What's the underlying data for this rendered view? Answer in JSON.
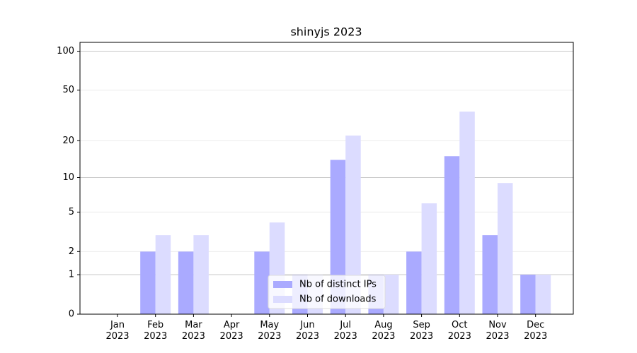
{
  "chart_data": {
    "type": "bar",
    "title": "shinyjs 2023",
    "scale": "log1p",
    "categories": [
      "Jan\n2023",
      "Feb\n2023",
      "Mar\n2023",
      "Apr\n2023",
      "May\n2023",
      "Jun\n2023",
      "Jul\n2023",
      "Aug\n2023",
      "Sep\n2023",
      "Oct\n2023",
      "Nov\n2023",
      "Dec\n2023"
    ],
    "series": [
      {
        "name": "Nb of distinct IPs",
        "color": "#aaaaff",
        "values": [
          0,
          2,
          2,
          0,
          2,
          1,
          14,
          1,
          2,
          15,
          3,
          1
        ]
      },
      {
        "name": "Nb of downloads",
        "color": "#dcdcff",
        "values": [
          0,
          3,
          3,
          0,
          4,
          1,
          22,
          1,
          6,
          34,
          9,
          1
        ]
      }
    ],
    "ylim": [
      0,
      117
    ],
    "yticks": [
      0,
      1,
      2,
      5,
      10,
      20,
      50,
      100
    ],
    "grid": true,
    "legend": "lower center"
  }
}
